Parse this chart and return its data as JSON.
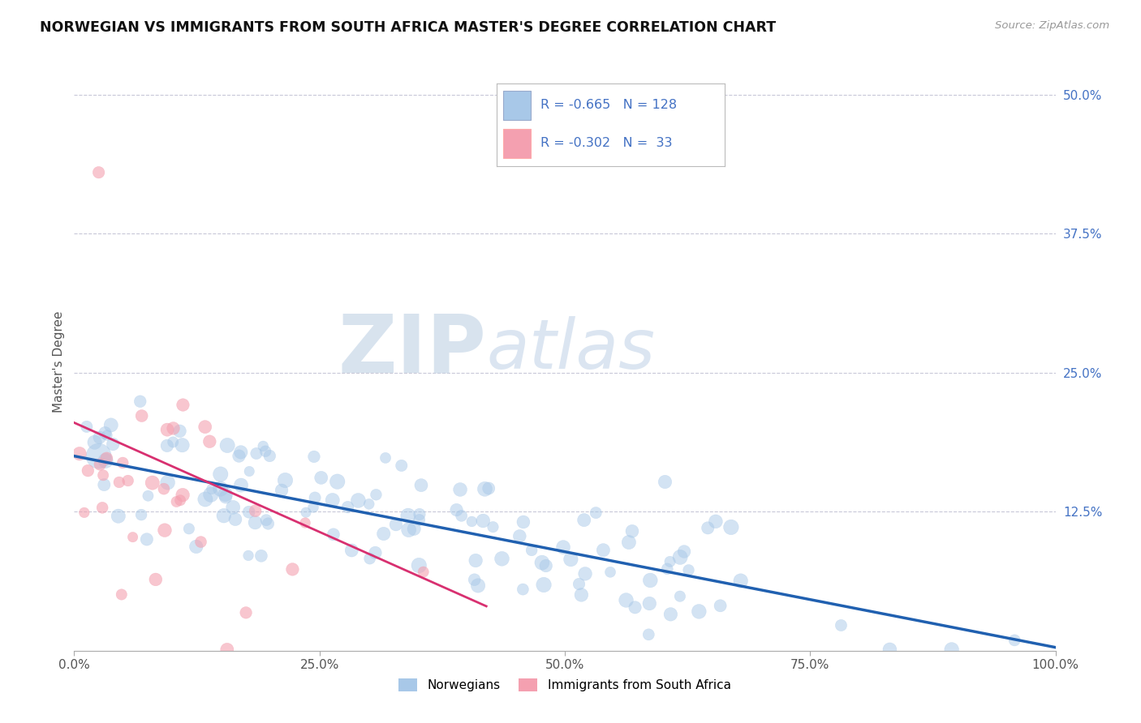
{
  "title": "NORWEGIAN VS IMMIGRANTS FROM SOUTH AFRICA MASTER'S DEGREE CORRELATION CHART",
  "source": "Source: ZipAtlas.com",
  "ylabel": "Master's Degree",
  "xlim": [
    0.0,
    1.0
  ],
  "ylim": [
    0.0,
    0.52
  ],
  "x_ticks": [
    0.0,
    0.25,
    0.5,
    0.75,
    1.0
  ],
  "x_tick_labels": [
    "0.0%",
    "25.0%",
    "50.0%",
    "75.0%",
    "100.0%"
  ],
  "y_ticks": [
    0.0,
    0.125,
    0.25,
    0.375,
    0.5
  ],
  "y_tick_labels": [
    "",
    "12.5%",
    "25.0%",
    "37.5%",
    "50.0%"
  ],
  "legend_r_blue": "-0.665",
  "legend_n_blue": "128",
  "legend_r_pink": "-0.302",
  "legend_n_pink": "33",
  "blue_color": "#a8c8e8",
  "pink_color": "#f4a0b0",
  "blue_line_color": "#2060b0",
  "pink_line_color": "#d83070",
  "watermark_zip": "ZIP",
  "watermark_atlas": "atlas",
  "background_color": "#ffffff",
  "grid_color": "#c8c8d8",
  "dot_size": 120,
  "blue_alpha": 0.5,
  "pink_alpha": 0.6,
  "nor_line_x0": 0.0,
  "nor_line_x1": 1.0,
  "nor_line_y0": 0.175,
  "nor_line_y1": 0.003,
  "imm_line_x0": 0.0,
  "imm_line_x1": 0.42,
  "imm_line_y0": 0.205,
  "imm_line_y1": 0.04
}
